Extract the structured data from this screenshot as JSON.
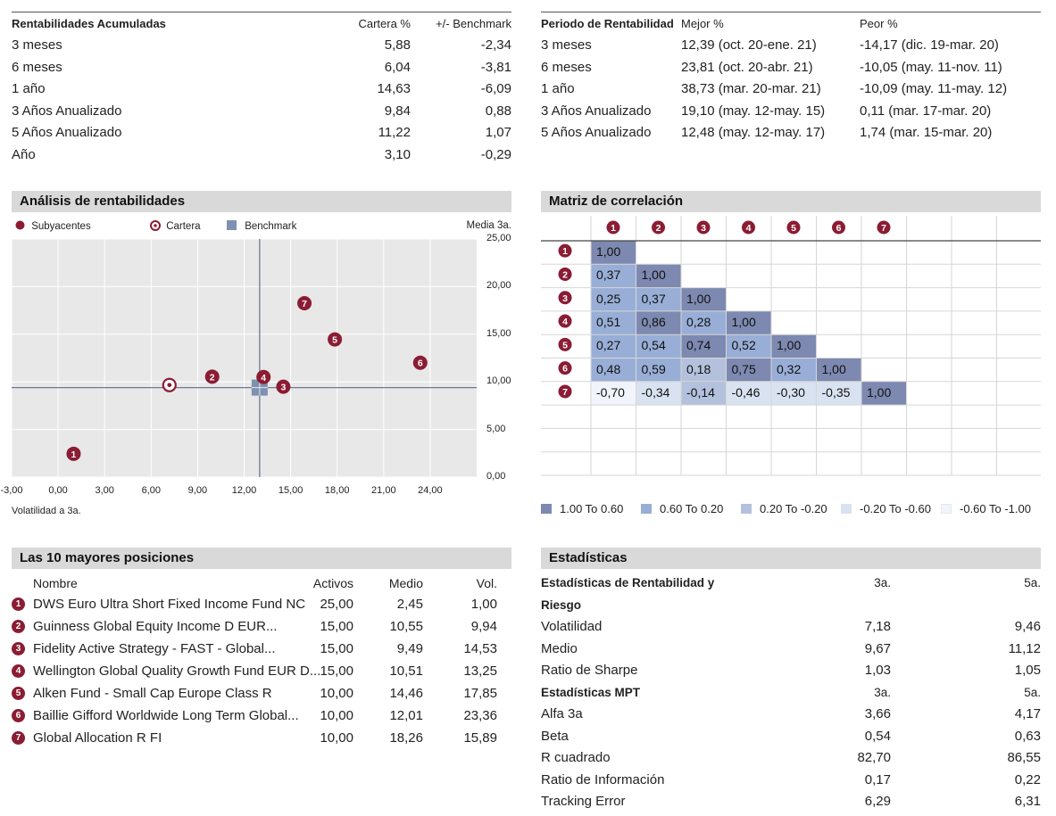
{
  "returns": {
    "title": "Rentabilidades Acumuladas",
    "col_portfolio": "Cartera %",
    "col_benchmark": "+/- Benchmark",
    "rows": [
      {
        "label": "3 meses",
        "portfolio": "5,88",
        "benchmark": "-2,34"
      },
      {
        "label": "6 meses",
        "portfolio": "6,04",
        "benchmark": "-3,81"
      },
      {
        "label": "1 año",
        "portfolio": "14,63",
        "benchmark": "-6,09"
      },
      {
        "label": "3 Años Anualizado",
        "portfolio": "9,84",
        "benchmark": "0,88"
      },
      {
        "label": "5 Años Anualizado",
        "portfolio": "11,22",
        "benchmark": "1,07"
      },
      {
        "label": "Año",
        "portfolio": "3,10",
        "benchmark": "-0,29"
      }
    ]
  },
  "periods": {
    "title": "Periodo de Rentabilidad",
    "col_best": "Mejor %",
    "col_worst": "Peor %",
    "rows": [
      {
        "label": "3 meses",
        "best": "12,39 (oct. 20-ene. 21)",
        "worst": "-14,17 (dic. 19-mar. 20)"
      },
      {
        "label": "6 meses",
        "best": "23,81 (oct. 20-abr. 21)",
        "worst": "-10,05 (may. 11-nov. 11)"
      },
      {
        "label": "1 año",
        "best": "38,73 (mar. 20-mar. 21)",
        "worst": "-10,09 (may. 11-may. 12)"
      },
      {
        "label": "3 Años Anualizado",
        "best": "19,10 (may. 12-may. 15)",
        "worst": "0,11 (mar. 17-mar. 20)"
      },
      {
        "label": "5 Años Anualizado",
        "best": "12,48 (may. 12-may. 17)",
        "worst": "1,74 (mar. 15-mar. 20)"
      }
    ]
  },
  "analysis": {
    "title": "Análisis de rentabilidades",
    "legend_underlying": "Subyacentes",
    "legend_portfolio": "Cartera",
    "legend_benchmark": "Benchmark",
    "y_title": "Media 3a.",
    "x_title": "Volatilidad a 3a."
  },
  "correlation": {
    "title": "Matriz de correlación",
    "matrix": [
      [
        "1,00"
      ],
      [
        "0,37",
        "1,00"
      ],
      [
        "0,25",
        "0,37",
        "1,00"
      ],
      [
        "0,51",
        "0,86",
        "0,28",
        "1,00"
      ],
      [
        "0,27",
        "0,54",
        "0,74",
        "0,52",
        "1,00"
      ],
      [
        "0,48",
        "0,59",
        "0,18",
        "0,75",
        "0,32",
        "1,00"
      ],
      [
        "-0,70",
        "-0,34",
        "-0,14",
        "-0,46",
        "-0,30",
        "-0,35",
        "1,00"
      ]
    ],
    "legend": [
      {
        "label": "1.00 To 0.60",
        "color": "#7d89b0"
      },
      {
        "label": "0.60 To 0.20",
        "color": "#98aed6"
      },
      {
        "label": "0.20 To -0.20",
        "color": "#b3c1dc"
      },
      {
        "label": "-0.20 To -0.60",
        "color": "#d9e2f0"
      },
      {
        "label": "-0.60 To -1.00",
        "color": "#f1f4fa"
      }
    ]
  },
  "holdings": {
    "title": "Las 10 mayores posiciones",
    "col_name": "Nombre",
    "col_assets": "Activos",
    "col_mean": "Medio",
    "col_vol": "Vol.",
    "rows": [
      {
        "n": "1",
        "name": "DWS Euro Ultra Short Fixed Income Fund NC",
        "assets": "25,00",
        "mean": "2,45",
        "vol": "1,00"
      },
      {
        "n": "2",
        "name": "Guinness Global Equity Income D EUR...",
        "assets": "15,00",
        "mean": "10,55",
        "vol": "9,94"
      },
      {
        "n": "3",
        "name": "Fidelity Active Strategy - FAST - Global...",
        "assets": "15,00",
        "mean": "9,49",
        "vol": "14,53"
      },
      {
        "n": "4",
        "name": "Wellington Global Quality Growth Fund EUR D...",
        "assets": "15,00",
        "mean": "10,51",
        "vol": "13,25"
      },
      {
        "n": "5",
        "name": "Alken Fund - Small Cap Europe Class R",
        "assets": "10,00",
        "mean": "14,46",
        "vol": "17,85"
      },
      {
        "n": "6",
        "name": "Baillie Gifford Worldwide Long Term Global...",
        "assets": "10,00",
        "mean": "12,01",
        "vol": "23,36"
      },
      {
        "n": "7",
        "name": "Global Allocation R FI",
        "assets": "10,00",
        "mean": "18,26",
        "vol": "15,89"
      }
    ]
  },
  "stats": {
    "title": "Estadísticas",
    "rows": [
      {
        "label": "Estadísticas de Rentabilidad y",
        "a": "3a.",
        "b": "5a.",
        "bold": true
      },
      {
        "label": "Riesgo",
        "a": "",
        "b": "",
        "bold": true
      },
      {
        "label": "Volatilidad",
        "a": "7,18",
        "b": "9,46",
        "bold": false
      },
      {
        "label": "Medio",
        "a": "9,67",
        "b": "11,12",
        "bold": false
      },
      {
        "label": "Ratio de Sharpe",
        "a": "1,03",
        "b": "1,05",
        "bold": false
      },
      {
        "label": "Estadísticas MPT",
        "a": "3a.",
        "b": "5a.",
        "bold": true
      },
      {
        "label": "Alfa 3a",
        "a": "3,66",
        "b": "4,17",
        "bold": false
      },
      {
        "label": "Beta",
        "a": "0,54",
        "b": "0,63",
        "bold": false
      },
      {
        "label": "R cuadrado",
        "a": "82,70",
        "b": "86,55",
        "bold": false
      },
      {
        "label": "Ratio de Información",
        "a": "0,17",
        "b": "0,22",
        "bold": false
      },
      {
        "label": "Tracking Error",
        "a": "6,29",
        "b": "6,31",
        "bold": false
      }
    ]
  },
  "chart_data": {
    "type": "scatter",
    "title": "Análisis de rentabilidades",
    "xlabel": "Volatilidad a 3a.",
    "ylabel": "Media 3a.",
    "xlim": [
      -3,
      27
    ],
    "ylim": [
      0,
      25
    ],
    "x_ticks": [
      "-3,00",
      "0,00",
      "3,00",
      "6,00",
      "9,00",
      "12,00",
      "15,00",
      "18,00",
      "21,00",
      "24,00"
    ],
    "y_ticks": [
      "25,00",
      "20,00",
      "15,00",
      "10,00",
      "5,00",
      "0,00"
    ],
    "y_tick_values": [
      25,
      20,
      15,
      10,
      5,
      0
    ],
    "x_tick_values": [
      -3,
      0,
      3,
      6,
      9,
      12,
      15,
      18,
      21,
      24
    ],
    "series": [
      {
        "name": "Subyacentes",
        "points": [
          {
            "label": "1",
            "x": 1.0,
            "y": 2.45
          },
          {
            "label": "2",
            "x": 9.94,
            "y": 10.55
          },
          {
            "label": "3",
            "x": 14.53,
            "y": 9.49
          },
          {
            "label": "4",
            "x": 13.25,
            "y": 10.51
          },
          {
            "label": "5",
            "x": 17.85,
            "y": 14.46
          },
          {
            "label": "6",
            "x": 23.36,
            "y": 12.01
          },
          {
            "label": "7",
            "x": 15.89,
            "y": 18.26
          }
        ]
      },
      {
        "name": "Cartera",
        "points": [
          {
            "x": 7.18,
            "y": 9.67
          }
        ]
      },
      {
        "name": "Benchmark",
        "points": [
          {
            "x": 13.0,
            "y": 9.4
          }
        ]
      }
    ]
  }
}
